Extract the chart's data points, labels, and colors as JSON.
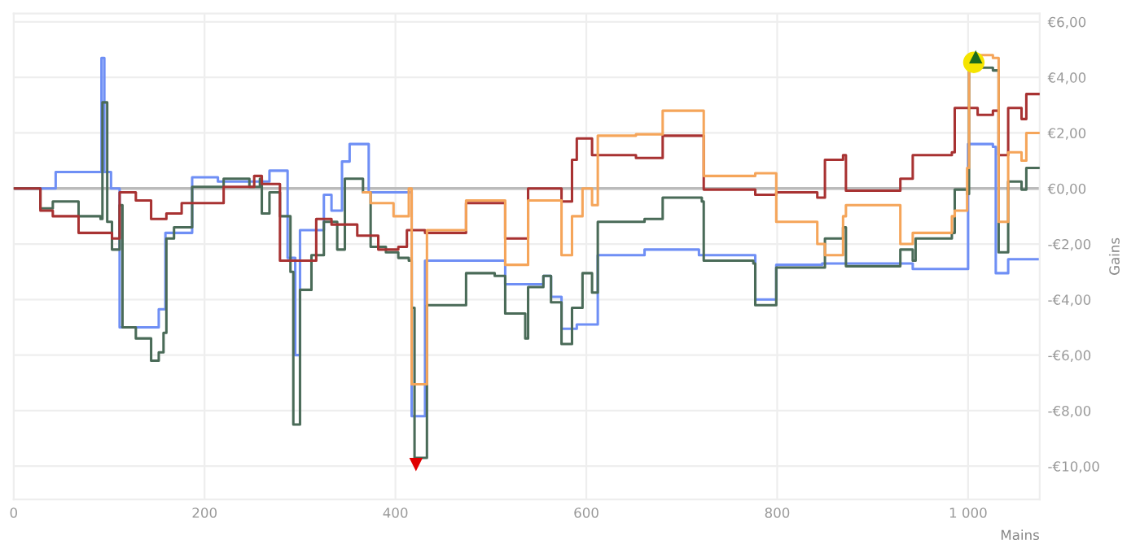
{
  "chart_data": {
    "type": "step",
    "xlabel": "Mains",
    "ylabel": "Gains",
    "xlim": [
      0,
      1075
    ],
    "ylim": [
      -11.2,
      6.3
    ],
    "xticks": [
      0,
      200,
      400,
      600,
      800,
      {
        "value": 1000,
        "label": "1 000"
      }
    ],
    "yticks": [
      {
        "value": -10,
        "label": "-€10,00"
      },
      {
        "value": -8,
        "label": "-€8,00"
      },
      {
        "value": -6,
        "label": "-€6,00"
      },
      {
        "value": -4,
        "label": "-€4,00"
      },
      {
        "value": -2,
        "label": "-€2,00"
      },
      {
        "value": 0,
        "label": "€0,00"
      },
      {
        "value": 2,
        "label": "€2,00"
      },
      {
        "value": 4,
        "label": "€4,00"
      },
      {
        "value": 6,
        "label": "€6,00"
      }
    ],
    "grid": true,
    "legend": false,
    "ref_lines": [
      {
        "axis": "y",
        "value": 0,
        "color": "#bbbbbb"
      }
    ],
    "series": [
      {
        "color": "#6f8ff5",
        "x": [
          0,
          44,
          92,
          95,
          102,
          111,
          152,
          159,
          187,
          214,
          268,
          287,
          295,
          300,
          325,
          333,
          344,
          352,
          372,
          417,
          431,
          515,
          555,
          563,
          574,
          590,
          612,
          661,
          718,
          777,
          799,
          847,
          942,
          1000,
          1026,
          1029,
          1042,
          1075
        ],
        "values": [
          0,
          0.59,
          4.7,
          0.59,
          0,
          -5.0,
          -4.35,
          -1.6,
          0.4,
          0.25,
          0.64,
          -2.5,
          -6.0,
          -1.5,
          -0.23,
          -0.8,
          0.97,
          1.6,
          -0.14,
          -8.2,
          -2.6,
          -3.45,
          -3.15,
          -3.9,
          -5.05,
          -4.9,
          -2.4,
          -2.2,
          -2.4,
          -4.0,
          -2.75,
          -2.7,
          -2.9,
          1.6,
          1.5,
          -3.05,
          -2.55,
          -2.55
        ]
      },
      {
        "color": "#4a6b58",
        "x": [
          0,
          28,
          41,
          68,
          91,
          93,
          98,
          103,
          111,
          114,
          128,
          144,
          152,
          157,
          160,
          168,
          187,
          220,
          247,
          258,
          260,
          268,
          279,
          290,
          293,
          300,
          312,
          325,
          339,
          347,
          366,
          374,
          390,
          403,
          414,
          417,
          420,
          433,
          474,
          504,
          515,
          536,
          539,
          555,
          563,
          574,
          585,
          596,
          606,
          612,
          661,
          680,
          721,
          723,
          775,
          777,
          799,
          850,
          869,
          872,
          929,
          942,
          945,
          983,
          986,
          999,
          1001,
          1010,
          1026,
          1032,
          1042,
          1056,
          1061,
          1075
        ],
        "values": [
          0,
          -0.72,
          -0.47,
          -1.0,
          -1.1,
          3.1,
          -1.2,
          -2.2,
          -0.6,
          -5.0,
          -5.4,
          -6.2,
          -5.9,
          -5.2,
          -1.8,
          -1.4,
          0.06,
          0.35,
          0.06,
          0.35,
          -0.9,
          -0.14,
          -1.0,
          -3.0,
          -8.5,
          -3.65,
          -2.4,
          -1.2,
          -2.2,
          0.35,
          -0.14,
          -2.1,
          -2.3,
          -2.5,
          -2.6,
          -4.3,
          -9.7,
          -4.2,
          -3.05,
          -3.15,
          -4.5,
          -5.4,
          -3.55,
          -3.15,
          -4.1,
          -5.6,
          -4.3,
          -3.05,
          -3.75,
          -1.2,
          -1.1,
          -0.33,
          -0.47,
          -2.6,
          -2.7,
          -4.2,
          -2.85,
          -1.8,
          -1.4,
          -2.8,
          -2.2,
          -2.6,
          -1.8,
          -1.6,
          -0.04,
          -0.2,
          4.6,
          4.35,
          4.25,
          -2.3,
          0.25,
          -0.04,
          0.74,
          0.74
        ]
      },
      {
        "color": "#a83232",
        "x": [
          0,
          28,
          41,
          68,
          103,
          111,
          128,
          144,
          160,
          176,
          220,
          252,
          260,
          279,
          317,
          333,
          360,
          382,
          403,
          412,
          431,
          474,
          515,
          539,
          574,
          585,
          590,
          606,
          652,
          680,
          723,
          777,
          799,
          842,
          850,
          869,
          872,
          929,
          942,
          983,
          986,
          1010,
          1026,
          1032,
          1042,
          1056,
          1061,
          1075
        ],
        "values": [
          0,
          -0.8,
          -1.0,
          -1.6,
          -1.8,
          -0.14,
          -0.43,
          -1.1,
          -0.9,
          -0.53,
          0.06,
          0.45,
          0.16,
          -2.6,
          -1.1,
          -1.3,
          -1.7,
          -2.2,
          -2.1,
          -1.5,
          -1.6,
          -0.53,
          -1.8,
          0,
          -0.47,
          1.03,
          1.8,
          1.2,
          1.1,
          1.9,
          -0.04,
          -0.23,
          -0.14,
          -0.33,
          1.03,
          1.2,
          -0.08,
          0.35,
          1.2,
          1.3,
          2.9,
          2.65,
          2.8,
          1.2,
          2.9,
          2.5,
          3.4,
          3.4
        ]
      },
      {
        "color": "#f5a55a",
        "x": [
          366,
          374,
          398,
          414,
          417,
          433,
          474,
          515,
          539,
          574,
          585,
          596,
          606,
          612,
          652,
          680,
          723,
          777,
          799,
          842,
          850,
          869,
          872,
          929,
          942,
          983,
          986,
          999,
          1001,
          1026,
          1032,
          1042,
          1056,
          1061,
          1075
        ],
        "values": [
          -0.14,
          -0.53,
          -1.0,
          0,
          -7.05,
          -1.5,
          -0.43,
          -2.75,
          -0.43,
          -2.4,
          -1.0,
          0,
          -0.6,
          1.9,
          1.95,
          2.8,
          0.45,
          0.55,
          -1.2,
          -2.0,
          -2.4,
          -1.0,
          -0.6,
          -2.0,
          -1.6,
          -1.0,
          -0.8,
          0.74,
          4.8,
          4.7,
          -1.2,
          1.3,
          1.0,
          2.0,
          2.0
        ]
      },
      {
        "type": "scatter",
        "color": "#e00000",
        "marker": "triangle_down",
        "x": [
          421.5
        ],
        "values": [
          -9.94
        ]
      },
      {
        "type": "scatter",
        "color": "#f5e400",
        "marker": "circle",
        "x": [
          1006
        ],
        "values": [
          4.54
        ]
      },
      {
        "type": "scatter",
        "color": "#1d6b1d",
        "marker": "triangle",
        "x": [
          1008
        ],
        "values": [
          4.74
        ]
      }
    ]
  }
}
